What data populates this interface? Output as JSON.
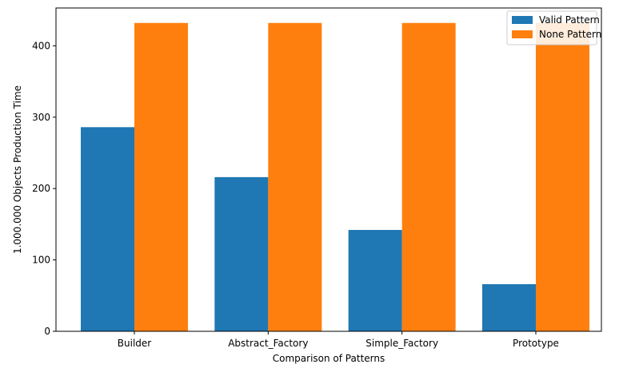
{
  "chart_data": {
    "type": "bar",
    "title": "",
    "xlabel": "Comparison of Patterns",
    "ylabel": "1.000.000 Objects Production Time",
    "categories": [
      "Builder",
      "Abstract_Factory",
      "Simple_Factory",
      "Prototype"
    ],
    "series": [
      {
        "name": "Valid Pattern",
        "color": "#1f77b4",
        "values": [
          286,
          216,
          142,
          66
        ]
      },
      {
        "name": "None Pattern",
        "color": "#ff7f0e",
        "values": [
          432,
          432,
          432,
          432
        ]
      }
    ],
    "ylim": [
      0,
      453
    ],
    "yticks": [
      0,
      100,
      200,
      300,
      400
    ],
    "grid": false,
    "legend_position": "top-right"
  }
}
